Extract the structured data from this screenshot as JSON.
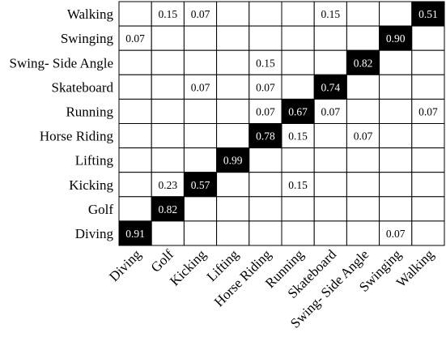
{
  "chart_data": {
    "type": "heatmap",
    "title": "",
    "xlabel": "",
    "ylabel": "",
    "rows": [
      "Walking",
      "Swinging",
      "Swing- Side Angle",
      "Skateboard",
      "Running",
      "Horse Riding",
      "Lifting",
      "Kicking",
      "Golf",
      "Diving"
    ],
    "columns": [
      "Diving",
      "Golf",
      "Kicking",
      "Lifting",
      "Horse Riding",
      "Running",
      "Skateboard",
      "Swing- Side Angle",
      "Swinging",
      "Walking"
    ],
    "values": [
      [
        null,
        0.15,
        0.07,
        null,
        null,
        null,
        0.15,
        null,
        null,
        0.51
      ],
      [
        0.07,
        null,
        null,
        null,
        null,
        null,
        null,
        null,
        0.9,
        null
      ],
      [
        null,
        null,
        null,
        null,
        0.15,
        null,
        null,
        0.82,
        null,
        null
      ],
      [
        null,
        null,
        0.07,
        null,
        0.07,
        null,
        0.74,
        null,
        null,
        null
      ],
      [
        null,
        null,
        null,
        null,
        0.07,
        0.67,
        0.07,
        null,
        null,
        0.07
      ],
      [
        null,
        null,
        null,
        null,
        0.78,
        0.15,
        null,
        0.07,
        null,
        null
      ],
      [
        null,
        null,
        null,
        0.99,
        null,
        null,
        null,
        null,
        null,
        null
      ],
      [
        null,
        0.23,
        0.57,
        null,
        null,
        0.15,
        null,
        null,
        null,
        null
      ],
      [
        null,
        0.82,
        null,
        null,
        null,
        null,
        null,
        null,
        null,
        null
      ],
      [
        0.91,
        null,
        null,
        null,
        null,
        null,
        null,
        null,
        0.07,
        null
      ]
    ],
    "highlight_color": "#000000",
    "grid": true
  }
}
